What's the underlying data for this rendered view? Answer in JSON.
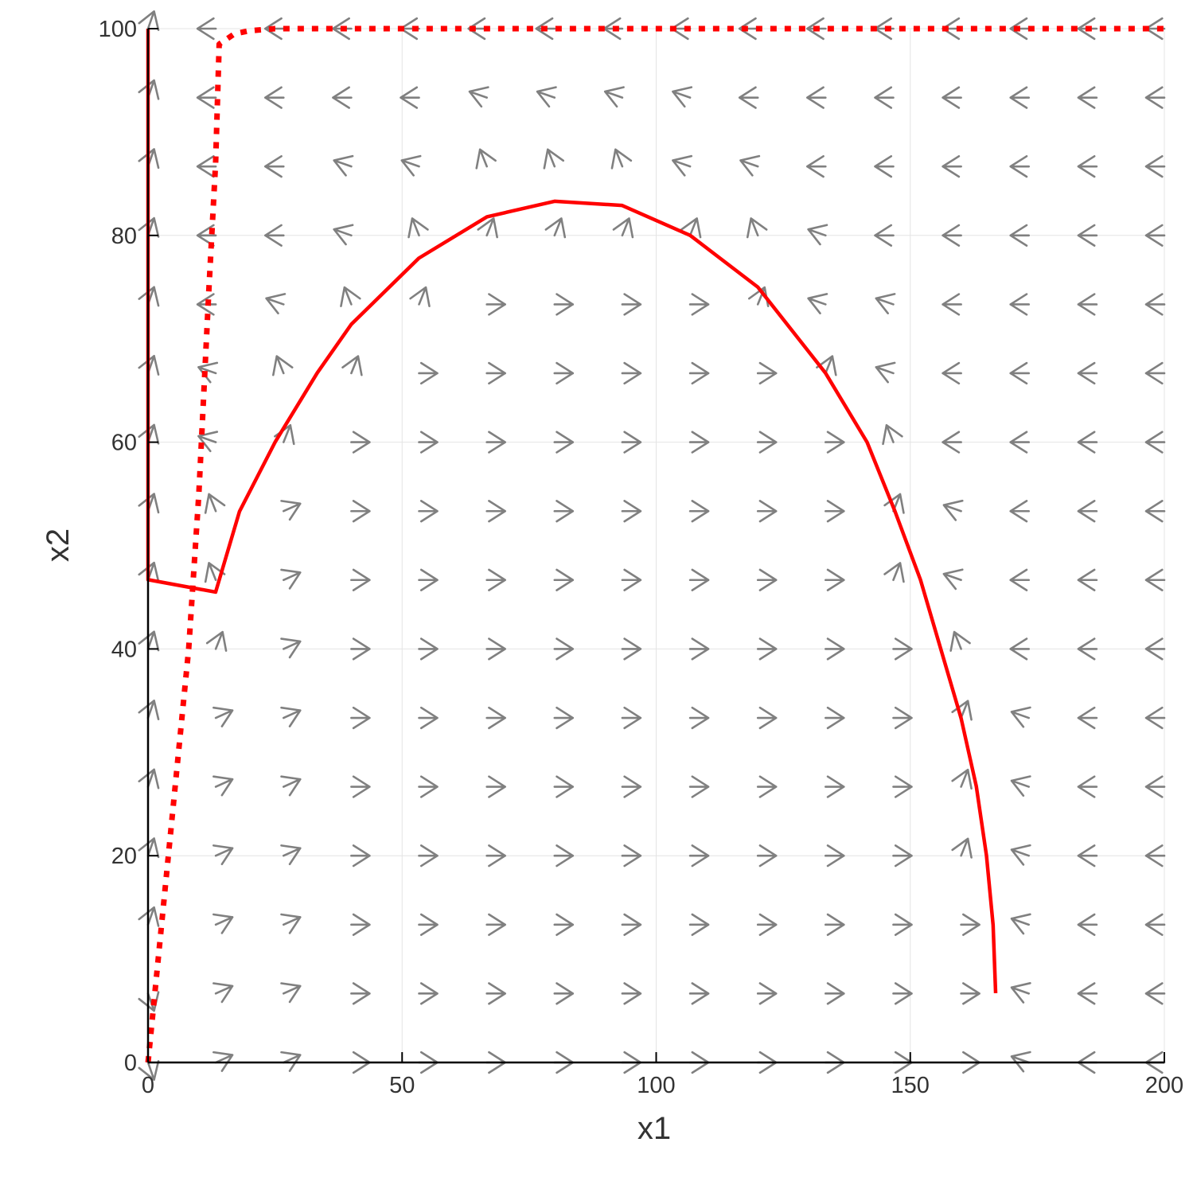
{
  "chart_data": {
    "type": "line",
    "xlabel": "x1",
    "ylabel": "x2",
    "xlim": [
      0,
      200
    ],
    "ylim": [
      0,
      100
    ],
    "xticks": [
      0,
      50,
      100,
      150,
      200
    ],
    "yticks": [
      0,
      20,
      40,
      60,
      80,
      100
    ],
    "grid": true,
    "legend": "none",
    "series": [
      {
        "style": "solid",
        "color": "#ff0000",
        "x": [
          0,
          0,
          13.3,
          18,
          25,
          33.3,
          40,
          53.3,
          66.7,
          80,
          93.3,
          106.7,
          120,
          133.3,
          141.5,
          147,
          152,
          156,
          160,
          163,
          165,
          166.3,
          166.8
        ],
        "y": [
          100,
          46.7,
          45.5,
          53.3,
          60,
          66.7,
          71.4,
          77.8,
          81.8,
          83.3,
          82.9,
          80,
          75,
          66.7,
          60,
          53.3,
          46.7,
          40,
          33.3,
          26.7,
          20,
          13.3,
          6.7
        ]
      },
      {
        "style": "dotted",
        "color": "#ff0000",
        "x": [
          0,
          2,
          4,
          6,
          8,
          10,
          12,
          13.3,
          14,
          17,
          20,
          25,
          30,
          200
        ],
        "y": [
          0,
          10,
          20,
          30,
          40,
          55,
          75,
          87,
          98.5,
          99.5,
          99.8,
          100,
          100,
          100
        ]
      }
    ],
    "vector_field": {
      "color": "#808080",
      "x": [
        0,
        13.33,
        26.67,
        40,
        53.33,
        66.67,
        80,
        93.33,
        106.67,
        120,
        133.33,
        146.67,
        160,
        173.33,
        186.67,
        200
      ],
      "y": [
        0,
        6.67,
        13.33,
        20,
        26.67,
        33.33,
        40,
        46.67,
        53.33,
        60,
        66.67,
        73.33,
        80,
        86.67,
        93.33,
        100
      ]
    }
  }
}
